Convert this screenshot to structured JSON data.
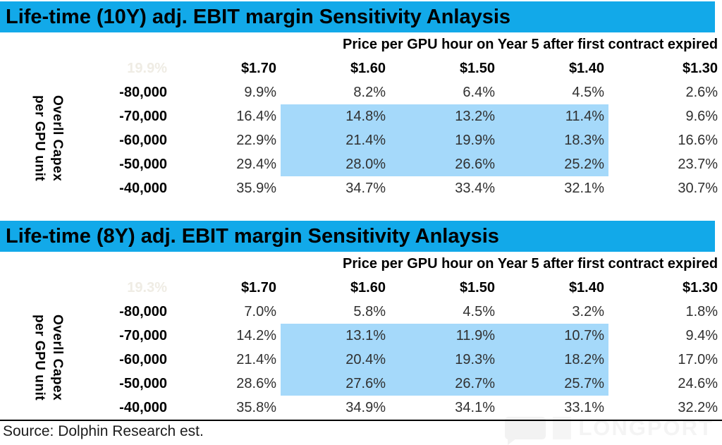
{
  "footer": {
    "source": "Source: Dolphin Research est.",
    "watermark": "LONGPORT"
  },
  "colors": {
    "title_bar": "#12A9E9",
    "highlight": "#A5D9FA",
    "faint_corner_text": "#efece4",
    "watermark_gray": "#f2f2f2"
  },
  "tables": [
    {
      "title": "Life-time (10Y) adj. EBIT margin Sensitivity Anlaysis",
      "subheader": "Price per GPU hour on Year 5 after first contract expired",
      "corner_value": "19.9%",
      "side_label_lines": [
        "Overll Capex",
        "per GPU unit"
      ],
      "col_headers": [
        "$1.70",
        "$1.60",
        "$1.50",
        "$1.40",
        "$1.30"
      ],
      "row_headers": [
        "-80,000",
        "-70,000",
        "-60,000",
        "-50,000",
        "-40,000"
      ],
      "rows": [
        [
          "9.9%",
          "8.2%",
          "6.4%",
          "4.5%",
          "2.6%"
        ],
        [
          "16.4%",
          "14.8%",
          "13.2%",
          "11.4%",
          "9.6%"
        ],
        [
          "22.9%",
          "21.4%",
          "19.9%",
          "18.3%",
          "16.6%"
        ],
        [
          "29.4%",
          "28.0%",
          "26.6%",
          "25.2%",
          "23.7%"
        ],
        [
          "35.9%",
          "34.7%",
          "33.4%",
          "32.1%",
          "30.7%"
        ]
      ],
      "highlight": {
        "rows": [
          1,
          2,
          3
        ],
        "cols": [
          1,
          2,
          3
        ]
      }
    },
    {
      "title": "Life-time (8Y) adj. EBIT margin Sensitivity Anlaysis",
      "subheader": "Price per GPU hour on Year 5 after first contract expired",
      "corner_value": "19.3%",
      "side_label_lines": [
        "Overll Capex",
        "per GPU unit"
      ],
      "col_headers": [
        "$1.70",
        "$1.60",
        "$1.50",
        "$1.40",
        "$1.30"
      ],
      "row_headers": [
        "-80,000",
        "-70,000",
        "-60,000",
        "-50,000",
        "-40,000"
      ],
      "rows": [
        [
          "7.0%",
          "5.8%",
          "4.5%",
          "3.2%",
          "1.8%"
        ],
        [
          "14.2%",
          "13.1%",
          "11.9%",
          "10.7%",
          "9.4%"
        ],
        [
          "21.4%",
          "20.4%",
          "19.3%",
          "18.2%",
          "17.0%"
        ],
        [
          "28.6%",
          "27.6%",
          "26.7%",
          "25.7%",
          "24.6%"
        ],
        [
          "35.8%",
          "34.9%",
          "34.1%",
          "33.1%",
          "32.2%"
        ]
      ],
      "highlight": {
        "rows": [
          1,
          2,
          3
        ],
        "cols": [
          1,
          2,
          3
        ]
      }
    }
  ],
  "chart_data": [
    {
      "type": "heatmap",
      "title": "Life-time (10Y) adj. EBIT margin Sensitivity Anlaysis",
      "xlabel": "Price per GPU hour on Year 5 after first contract expired",
      "ylabel": "Overll Capex per GPU unit",
      "x": [
        1.7,
        1.6,
        1.5,
        1.4,
        1.3
      ],
      "y": [
        -80000,
        -70000,
        -60000,
        -50000,
        -40000
      ],
      "values_pct": [
        [
          9.9,
          8.2,
          6.4,
          4.5,
          2.6
        ],
        [
          16.4,
          14.8,
          13.2,
          11.4,
          9.6
        ],
        [
          22.9,
          21.4,
          19.9,
          18.3,
          16.6
        ],
        [
          29.4,
          28.0,
          26.6,
          25.2,
          23.7
        ],
        [
          35.9,
          34.7,
          33.4,
          32.1,
          30.7
        ]
      ],
      "base_case_pct": 19.9,
      "highlighted_region": {
        "y_rows": [
          -70000,
          -60000,
          -50000
        ],
        "x_cols": [
          1.6,
          1.5,
          1.4
        ]
      },
      "legend_position": "none",
      "grid": false
    },
    {
      "type": "heatmap",
      "title": "Life-time (8Y) adj. EBIT margin Sensitivity Anlaysis",
      "xlabel": "Price per GPU hour on Year 5 after first contract expired",
      "ylabel": "Overll Capex per GPU unit",
      "x": [
        1.7,
        1.6,
        1.5,
        1.4,
        1.3
      ],
      "y": [
        -80000,
        -70000,
        -60000,
        -50000,
        -40000
      ],
      "values_pct": [
        [
          7.0,
          5.8,
          4.5,
          3.2,
          1.8
        ],
        [
          14.2,
          13.1,
          11.9,
          10.7,
          9.4
        ],
        [
          21.4,
          20.4,
          19.3,
          18.2,
          17.0
        ],
        [
          28.6,
          27.6,
          26.7,
          25.7,
          24.6
        ],
        [
          35.8,
          34.9,
          34.1,
          33.1,
          32.2
        ]
      ],
      "base_case_pct": 19.3,
      "highlighted_region": {
        "y_rows": [
          -70000,
          -60000,
          -50000
        ],
        "x_cols": [
          1.6,
          1.5,
          1.4
        ]
      },
      "legend_position": "none",
      "grid": false
    }
  ]
}
